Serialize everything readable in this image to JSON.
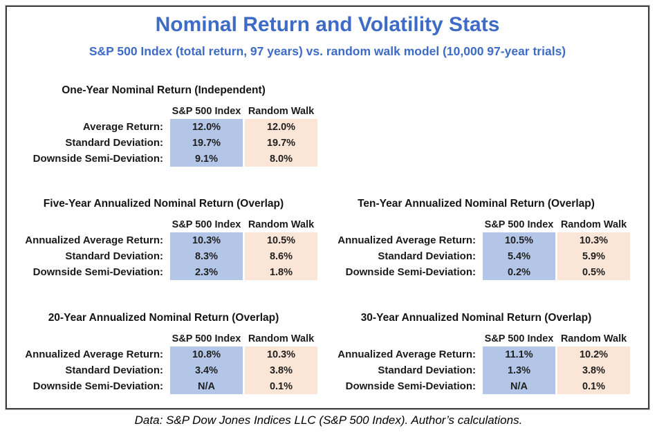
{
  "chart_data": {
    "type": "table",
    "title": "Nominal Return and Volatility Stats",
    "subtitle": "S&P 500 Index (total return, 97 years) vs. random walk model (10,000 97-year trials)",
    "columns": [
      "S&P 500 Index",
      "Random Walk"
    ],
    "tables": [
      {
        "title": "One-Year Nominal Return (Independent)",
        "rows": [
          {
            "label": "Average Return:",
            "sp500": "12.0%",
            "random_walk": "12.0%"
          },
          {
            "label": "Standard Deviation:",
            "sp500": "19.7%",
            "random_walk": "19.7%"
          },
          {
            "label": "Downside Semi-Deviation:",
            "sp500": "9.1%",
            "random_walk": "8.0%"
          }
        ]
      },
      {
        "title": "Five-Year Annualized Nominal Return (Overlap)",
        "rows": [
          {
            "label": "Annualized Average Return:",
            "sp500": "10.3%",
            "random_walk": "10.5%"
          },
          {
            "label": "Standard Deviation:",
            "sp500": "8.3%",
            "random_walk": "8.6%"
          },
          {
            "label": "Downside Semi-Deviation:",
            "sp500": "2.3%",
            "random_walk": "1.8%"
          }
        ]
      },
      {
        "title": "Ten-Year Annualized Nominal Return (Overlap)",
        "rows": [
          {
            "label": "Annualized Average Return:",
            "sp500": "10.5%",
            "random_walk": "10.3%"
          },
          {
            "label": "Standard Deviation:",
            "sp500": "5.4%",
            "random_walk": "5.9%"
          },
          {
            "label": "Downside Semi-Deviation:",
            "sp500": "0.2%",
            "random_walk": "0.5%"
          }
        ]
      },
      {
        "title": "20-Year Annualized Nominal Return (Overlap)",
        "rows": [
          {
            "label": "Annualized Average Return:",
            "sp500": "10.8%",
            "random_walk": "10.3%"
          },
          {
            "label": "Standard Deviation:",
            "sp500": "3.4%",
            "random_walk": "3.8%"
          },
          {
            "label": "Downside Semi-Deviation:",
            "sp500": "N/A",
            "random_walk": "0.1%"
          }
        ]
      },
      {
        "title": "30-Year Annualized Nominal Return (Overlap)",
        "rows": [
          {
            "label": "Annualized Average Return:",
            "sp500": "11.1%",
            "random_walk": "10.2%"
          },
          {
            "label": "Standard Deviation:",
            "sp500": "1.3%",
            "random_walk": "3.8%"
          },
          {
            "label": "Downside Semi-Deviation:",
            "sp500": "N/A",
            "random_walk": "0.1%"
          }
        ]
      }
    ],
    "caption": "Data: S&P Dow Jones Indices LLC (S&P 500 Index). Author’s calculations.",
    "colors": {
      "heading_blue": "#3e6bc6",
      "sp500_cell_blue": "#b4c6e7",
      "random_walk_cell_orange": "#fbe5d6"
    }
  }
}
